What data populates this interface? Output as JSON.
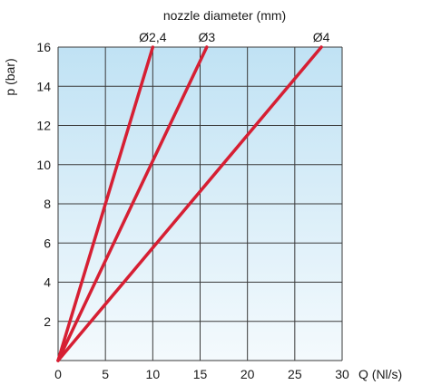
{
  "chart_data": {
    "type": "line",
    "top_title": "nozzle diameter (mm)",
    "xlabel": "Q (Nl/s)",
    "ylabel": "p (bar)",
    "xlim": [
      0,
      30
    ],
    "ylim": [
      0,
      16
    ],
    "x_ticks": [
      "0",
      "5",
      "10",
      "15",
      "20",
      "25",
      "30"
    ],
    "y_ticks": [
      "2",
      "4",
      "6",
      "8",
      "10",
      "12",
      "14",
      "16"
    ],
    "grid": true,
    "series": [
      {
        "name": "Ø2,4",
        "x": [
          0,
          10
        ],
        "y": [
          0,
          16
        ]
      },
      {
        "name": "Ø3",
        "x": [
          0,
          15.7
        ],
        "y": [
          0,
          16
        ]
      },
      {
        "name": "Ø4",
        "x": [
          0,
          27.8
        ],
        "y": [
          0,
          16
        ]
      }
    ],
    "colors": {
      "line": "#d61f33",
      "grid": "#3a3a3a",
      "bg_top": "#c0e2f4",
      "bg_bottom": "#f4fafd"
    }
  }
}
